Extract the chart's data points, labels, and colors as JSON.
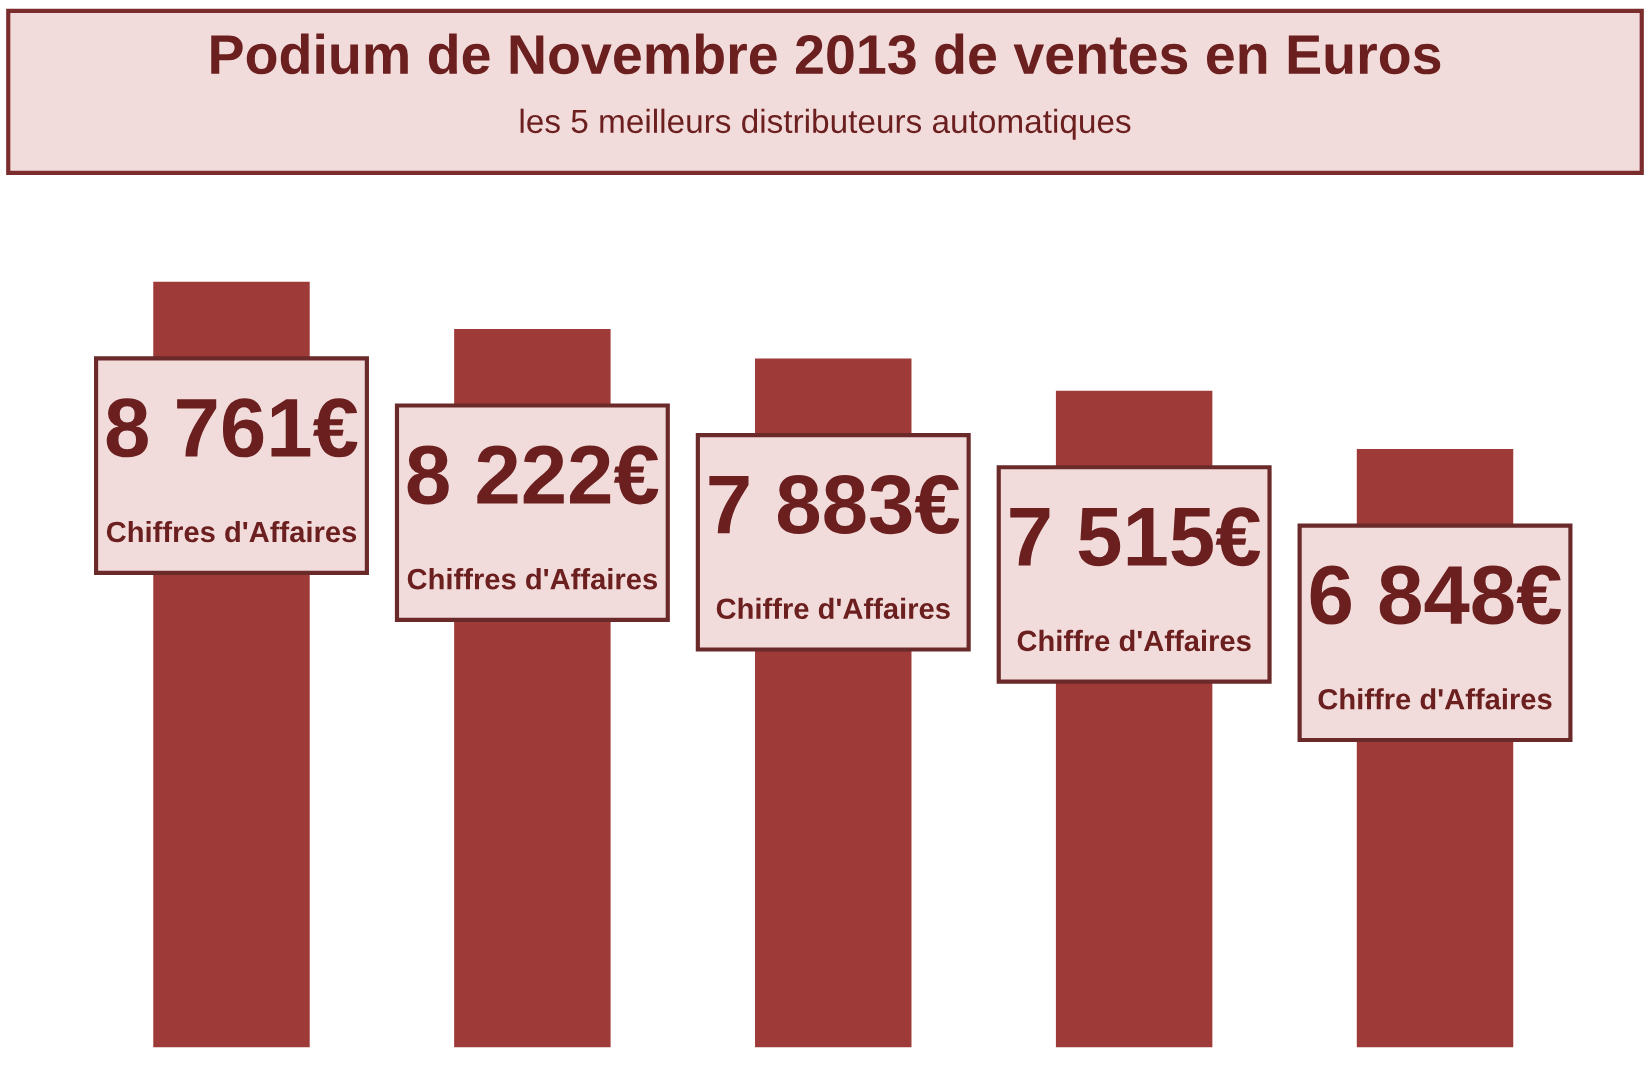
{
  "chart_data": {
    "type": "bar",
    "title": "Podium de Novembre 2013 de ventes en Euros",
    "subtitle": "les 5 meilleurs distributeurs automatiques",
    "categories": [
      null,
      null,
      null,
      null,
      null
    ],
    "values": [
      8761,
      8222,
      7883,
      7515,
      6848
    ],
    "value_labels": [
      "8 761€",
      "8 222€",
      "7 883€",
      "7 515€",
      "6 848€"
    ],
    "annotations": [
      "Chiffres d'Affaires",
      "Chiffres d'Affaires",
      "Chiffre d'Affaires",
      "Chiffre d'Affaires",
      "Chiffre d'Affaires"
    ],
    "color": "#9e3a37",
    "grid": false,
    "legend": false
  }
}
